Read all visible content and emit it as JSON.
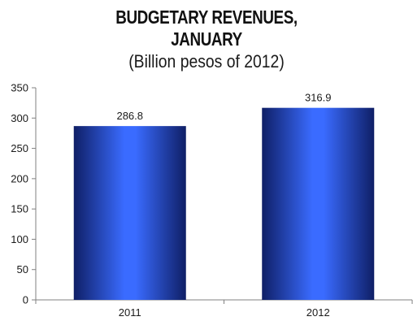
{
  "chart_data": {
    "type": "bar",
    "title_lines": [
      "BUDGETARY REVENUES,",
      "JANUARY"
    ],
    "subtitle": "(Billion pesos of 2012)",
    "categories": [
      "2011",
      "2012"
    ],
    "values": [
      286.8,
      316.9
    ],
    "data_labels": [
      "286.8",
      "316.9"
    ],
    "xlabel": "",
    "ylabel": "",
    "ylim": [
      0,
      350
    ],
    "yticks": [
      0,
      50,
      100,
      150,
      200,
      250,
      300,
      350
    ],
    "grid": false,
    "legend": "none",
    "colors": {
      "bar_edge": "#0f1f66",
      "bar_center": "#3a6bff",
      "axis": "#808080"
    }
  }
}
